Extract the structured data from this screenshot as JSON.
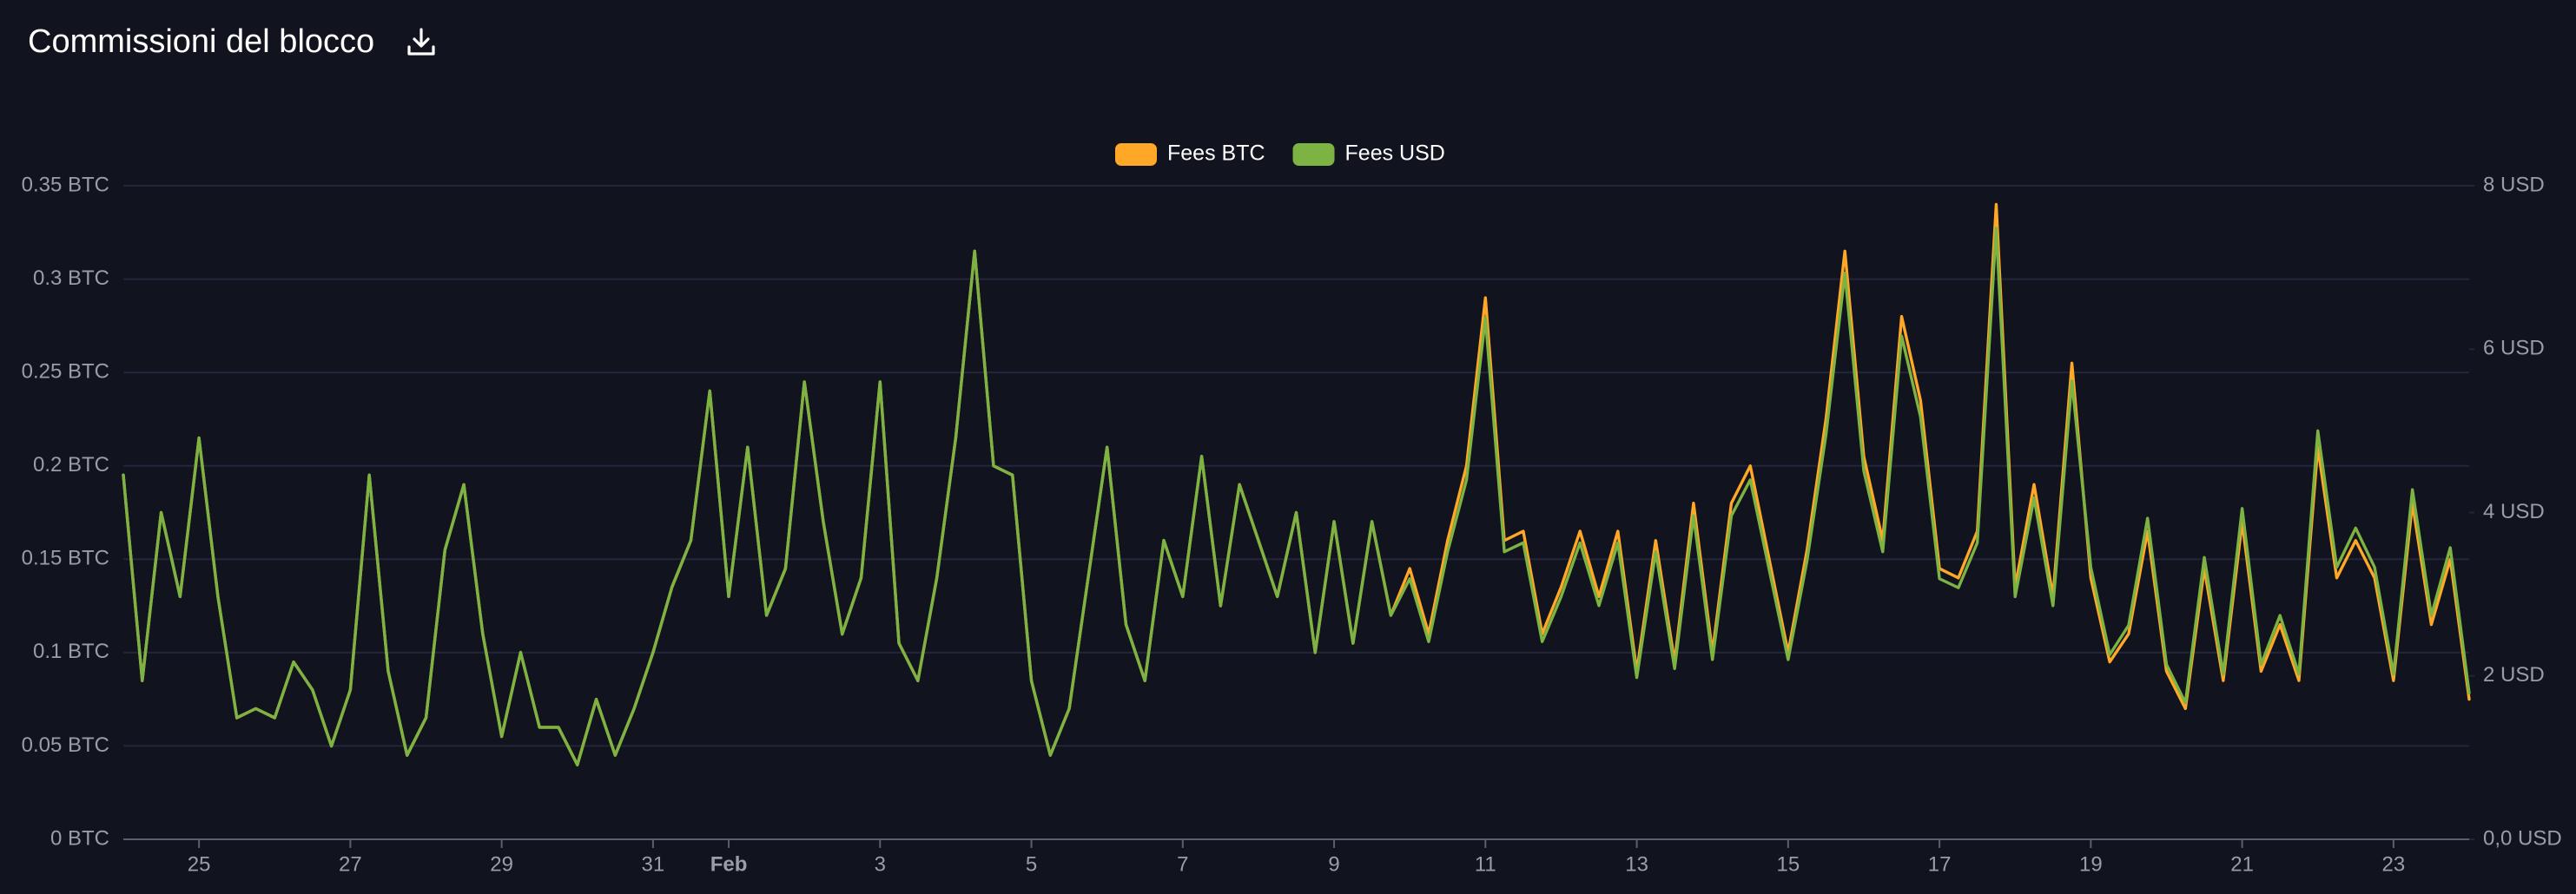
{
  "chart_data": {
    "type": "line",
    "title": "Commissioni del blocco",
    "x": [
      24,
      24.25,
      24.5,
      24.75,
      25,
      25.25,
      25.5,
      25.75,
      26,
      26.25,
      26.5,
      26.75,
      27,
      27.25,
      27.5,
      27.75,
      28,
      28.25,
      28.5,
      28.75,
      29,
      29.25,
      29.5,
      29.75,
      30,
      30.25,
      30.5,
      30.75,
      31,
      31.25,
      31.5,
      31.75,
      32,
      32.25,
      32.5,
      32.75,
      33,
      33.25,
      33.5,
      33.75,
      34,
      34.25,
      34.5,
      34.75,
      35,
      35.25,
      35.5,
      35.75,
      36,
      36.25,
      36.5,
      36.75,
      37,
      37.25,
      37.5,
      37.75,
      38,
      38.25,
      38.5,
      38.75,
      39,
      39.25,
      39.5,
      39.75,
      40,
      40.25,
      40.5,
      40.75,
      41,
      41.25,
      41.5,
      41.75,
      42,
      42.25,
      42.5,
      42.75,
      43,
      43.25,
      43.5,
      43.75,
      44,
      44.25,
      44.5,
      44.75,
      45,
      45.25,
      45.5,
      45.75,
      46,
      46.25,
      46.5,
      46.75,
      47,
      47.25,
      47.5,
      47.75,
      48,
      48.25,
      48.5,
      48.75,
      49,
      49.25,
      49.5,
      49.75,
      50,
      50.25,
      50.5,
      50.75,
      51,
      51.25,
      51.5,
      51.75,
      52,
      52.25,
      52.5,
      52.75,
      53,
      53.25,
      53.5,
      53.75,
      54,
      54.25,
      54.5,
      54.75,
      55
    ],
    "xlim": [
      24,
      55
    ],
    "xticks": [
      25,
      27,
      29,
      31,
      {
        "value": 32,
        "label": "Feb"
      },
      {
        "value": 34,
        "label": "3"
      },
      {
        "value": 36,
        "label": "5"
      },
      {
        "value": 38,
        "label": "7"
      },
      {
        "value": 40,
        "label": "9"
      },
      {
        "value": 42,
        "label": "11"
      },
      {
        "value": 44,
        "label": "13"
      },
      {
        "value": 46,
        "label": "15"
      },
      {
        "value": 48,
        "label": "17"
      },
      {
        "value": 50,
        "label": "19"
      },
      {
        "value": 52,
        "label": "21"
      },
      {
        "value": 54,
        "label": "23"
      }
    ],
    "ylim": [
      0,
      0.35
    ],
    "yticks": [
      {
        "value": 0,
        "label": "0 BTC"
      },
      {
        "value": 0.05,
        "label": "0.05 BTC"
      },
      {
        "value": 0.1,
        "label": "0.1 BTC"
      },
      {
        "value": 0.15,
        "label": "0.15 BTC"
      },
      {
        "value": 0.2,
        "label": "0.2 BTC"
      },
      {
        "value": 0.25,
        "label": "0.25 BTC"
      },
      {
        "value": 0.3,
        "label": "0.3 BTC"
      },
      {
        "value": 0.35,
        "label": "0.35 BTC"
      }
    ],
    "y2lim": [
      0,
      8
    ],
    "y2ticks": [
      {
        "value": 0,
        "label": "0,0 USD"
      },
      {
        "value": 2,
        "label": "2 USD"
      },
      {
        "value": 4,
        "label": "4 USD"
      },
      {
        "value": 6,
        "label": "6 USD"
      },
      {
        "value": 8,
        "label": "8 USD"
      }
    ],
    "grid": true,
    "legend": "top",
    "series": [
      {
        "name": "Fees BTC",
        "color": "#ffa726",
        "values": [
          0.195,
          0.085,
          0.175,
          0.13,
          0.215,
          0.13,
          0.065,
          0.07,
          0.065,
          0.095,
          0.08,
          0.05,
          0.08,
          0.195,
          0.09,
          0.045,
          0.065,
          0.155,
          0.19,
          0.11,
          0.055,
          0.1,
          0.06,
          0.06,
          0.04,
          0.075,
          0.045,
          0.07,
          0.1,
          0.135,
          0.16,
          0.24,
          0.13,
          0.21,
          0.12,
          0.145,
          0.245,
          0.17,
          0.11,
          0.14,
          0.245,
          0.105,
          0.085,
          0.14,
          0.215,
          0.315,
          0.2,
          0.195,
          0.085,
          0.045,
          0.07,
          0.14,
          0.21,
          0.115,
          0.085,
          0.16,
          0.13,
          0.205,
          0.125,
          0.19,
          0.16,
          0.13,
          0.175,
          0.1,
          0.17,
          0.105,
          0.17,
          0.12,
          0.145,
          0.11,
          0.16,
          0.2,
          0.29,
          0.16,
          0.165,
          0.11,
          0.135,
          0.165,
          0.13,
          0.165,
          0.09,
          0.16,
          0.095,
          0.18,
          0.1,
          0.18,
          0.2,
          0.15,
          0.1,
          0.155,
          0.225,
          0.315,
          0.205,
          0.16,
          0.28,
          0.235,
          0.145,
          0.14,
          0.165,
          0.34,
          0.135,
          0.19,
          0.13,
          0.255,
          0.14,
          0.095,
          0.11,
          0.165,
          0.09,
          0.07,
          0.145,
          0.085,
          0.17,
          0.09,
          0.115,
          0.085,
          0.21,
          0.14,
          0.16,
          0.14,
          0.085,
          0.18,
          0.115,
          0.15,
          0.075
        ]
      },
      {
        "name": "Fees USD",
        "color": "#7cb342",
        "axis": "y2",
        "values": [
          4.46,
          1.94,
          4.0,
          2.97,
          4.91,
          2.97,
          1.49,
          1.6,
          1.49,
          2.17,
          1.83,
          1.14,
          1.83,
          4.46,
          2.06,
          1.03,
          1.49,
          3.54,
          4.34,
          2.51,
          1.26,
          2.29,
          1.37,
          1.37,
          0.91,
          1.71,
          1.03,
          1.6,
          2.29,
          3.09,
          3.66,
          5.49,
          2.97,
          4.8,
          2.74,
          3.31,
          5.6,
          3.89,
          2.51,
          3.2,
          5.6,
          2.4,
          1.94,
          3.2,
          4.91,
          7.2,
          4.57,
          4.46,
          1.94,
          1.03,
          1.6,
          3.2,
          4.8,
          2.63,
          1.94,
          3.66,
          2.97,
          4.69,
          2.86,
          4.34,
          3.66,
          2.97,
          4.0,
          2.29,
          3.89,
          2.4,
          3.89,
          2.74,
          3.19,
          2.42,
          3.52,
          4.4,
          6.38,
          3.52,
          3.63,
          2.42,
          2.97,
          3.63,
          2.86,
          3.63,
          1.98,
          3.52,
          2.09,
          3.96,
          2.2,
          3.96,
          4.4,
          3.3,
          2.2,
          3.41,
          4.95,
          6.93,
          4.51,
          3.52,
          6.16,
          5.17,
          3.19,
          3.08,
          3.63,
          7.48,
          2.97,
          4.18,
          2.86,
          5.61,
          3.33,
          2.26,
          2.62,
          3.93,
          2.14,
          1.67,
          3.45,
          2.02,
          4.05,
          2.14,
          2.74,
          2.02,
          5.0,
          3.33,
          3.81,
          3.33,
          2.02,
          4.28,
          2.74,
          3.57,
          1.79
        ]
      }
    ]
  }
}
